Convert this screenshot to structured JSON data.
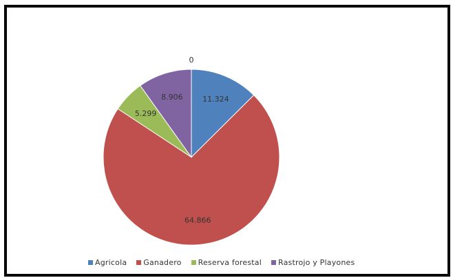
{
  "chart_data": {
    "type": "pie",
    "categories": [
      "Agricola",
      "Ganadero",
      "Reserva forestal",
      "Rastrojo y Playones",
      ""
    ],
    "values": [
      11.324,
      64.866,
      5.299,
      8.906,
      0
    ],
    "labels": [
      "11.324",
      "64.866",
      "5.299",
      "8.906",
      "0"
    ],
    "colors": [
      "#4F81BD",
      "#C0504D",
      "#9BBB59",
      "#8064A2",
      "#4BACC6"
    ],
    "legend_position": "bottom",
    "title": ""
  },
  "legend": {
    "items": [
      {
        "label": "Agricola",
        "color": "#4F81BD"
      },
      {
        "label": "Ganadero",
        "color": "#C0504D"
      },
      {
        "label": "Reserva forestal",
        "color": "#9BBB59"
      },
      {
        "label": "Rastrojo y Playones",
        "color": "#8064A2"
      }
    ]
  }
}
